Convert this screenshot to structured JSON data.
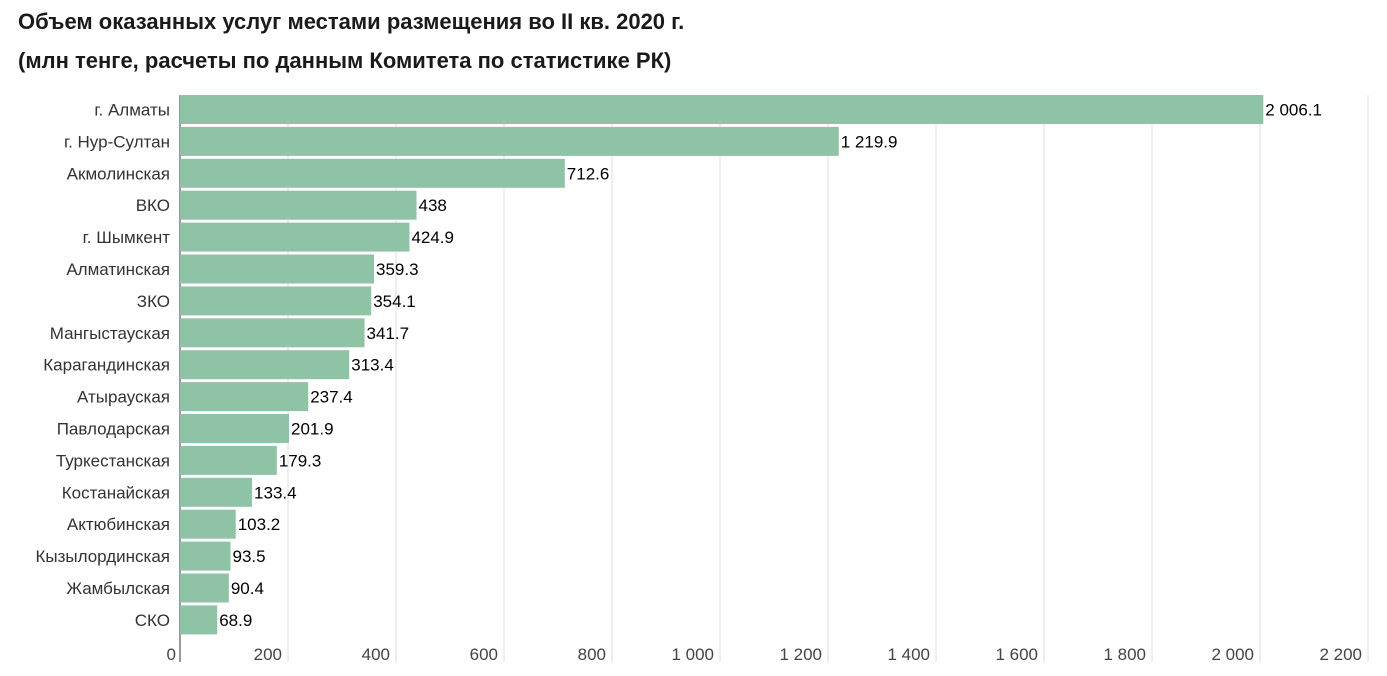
{
  "header": {
    "title_line1": "Объем оказанных услуг местами размещения во II кв. 2020 г.",
    "title_line2": "(млн тенге, расчеты по данным Комитета по статистике РК)"
  },
  "chart_data": {
    "type": "bar",
    "orientation": "horizontal",
    "title": "Объем оказанных услуг местами размещения во II кв. 2020 г.",
    "subtitle": "(млн тенге, расчеты по данным Комитета по статистике РК)",
    "categories": [
      "г. Алматы",
      "г. Нур-Султан",
      "Акмолинская",
      "ВКО",
      "г. Шымкент",
      "Алматинская",
      "ЗКО",
      "Мангыстауская",
      "Карагандинская",
      "Атырауская",
      "Павлодарская",
      "Туркестанская",
      "Костанайская",
      "Актюбинская",
      "Кызылординская",
      "Жамбылская",
      "СКО"
    ],
    "values": [
      2006.1,
      1219.9,
      712.6,
      438,
      424.9,
      359.3,
      354.1,
      341.7,
      313.4,
      237.4,
      201.9,
      179.3,
      133.4,
      103.2,
      93.5,
      90.4,
      68.9
    ],
    "value_labels": [
      "2 006.1",
      "1 219.9",
      "712.6",
      "438",
      "424.9",
      "359.3",
      "354.1",
      "341.7",
      "313.4",
      "237.4",
      "201.9",
      "179.3",
      "133.4",
      "103.2",
      "93.5",
      "90.4",
      "68.9"
    ],
    "xlim": [
      0,
      2200
    ],
    "x_ticks": [
      0,
      200,
      400,
      600,
      800,
      1000,
      1200,
      1400,
      1600,
      1800,
      2000,
      2200
    ],
    "x_tick_labels": [
      "0",
      "200",
      "400",
      "600",
      "800",
      "1 000",
      "1 200",
      "1 400",
      "1 600",
      "1 800",
      "2 000",
      "2 200"
    ],
    "grid": true,
    "bar_color": "#8fc3a5",
    "grid_color": "#dddddd"
  }
}
